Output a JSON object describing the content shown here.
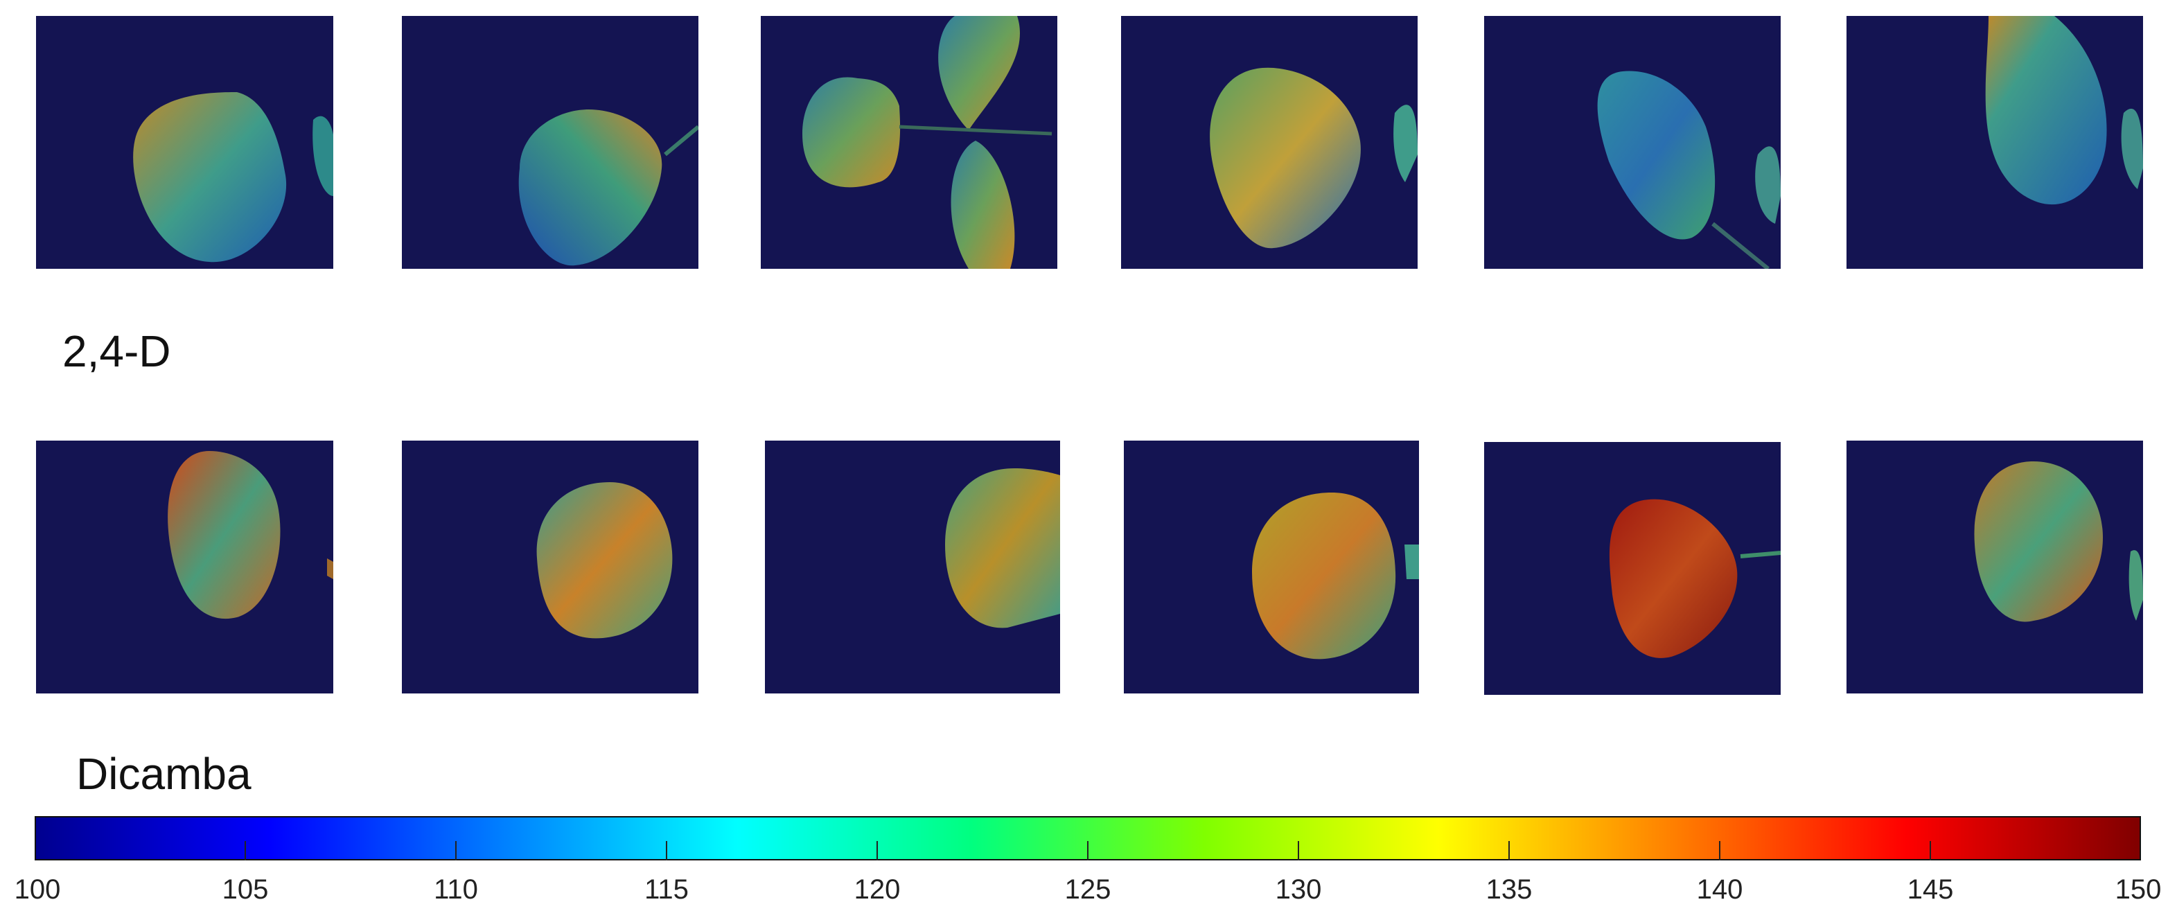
{
  "rows": [
    {
      "label": "2,4-D",
      "panels": [
        {
          "name": "leaf-2-4-d-1",
          "leaf_tone": "blue-green-yellow"
        },
        {
          "name": "leaf-2-4-d-2",
          "leaf_tone": "blue-green-orange"
        },
        {
          "name": "leaf-2-4-d-3",
          "leaf_tone": "green-yellow"
        },
        {
          "name": "leaf-2-4-d-4",
          "leaf_tone": "green-yellow"
        },
        {
          "name": "leaf-2-4-d-5",
          "leaf_tone": "blue-green"
        },
        {
          "name": "leaf-2-4-d-6",
          "leaf_tone": "blue-green"
        }
      ]
    },
    {
      "label": "Dicamba",
      "panels": [
        {
          "name": "leaf-dicamba-1",
          "leaf_tone": "orange-red"
        },
        {
          "name": "leaf-dicamba-2",
          "leaf_tone": "orange-green"
        },
        {
          "name": "leaf-dicamba-3",
          "leaf_tone": "green-orange"
        },
        {
          "name": "leaf-dicamba-4",
          "leaf_tone": "yellow-orange"
        },
        {
          "name": "leaf-dicamba-5",
          "leaf_tone": "dark-red"
        },
        {
          "name": "leaf-dicamba-6",
          "leaf_tone": "orange-green"
        }
      ]
    }
  ],
  "colorbar": {
    "min": 100,
    "max": 150,
    "ticks": [
      "100",
      "105",
      "110",
      "115",
      "120",
      "125",
      "130",
      "135",
      "140",
      "145",
      "150"
    ],
    "colors": [
      "#00008f",
      "#0000ff",
      "#0080ff",
      "#00ffff",
      "#00ff80",
      "#80ff00",
      "#ffff00",
      "#ff8000",
      "#ff0000",
      "#800000"
    ]
  }
}
